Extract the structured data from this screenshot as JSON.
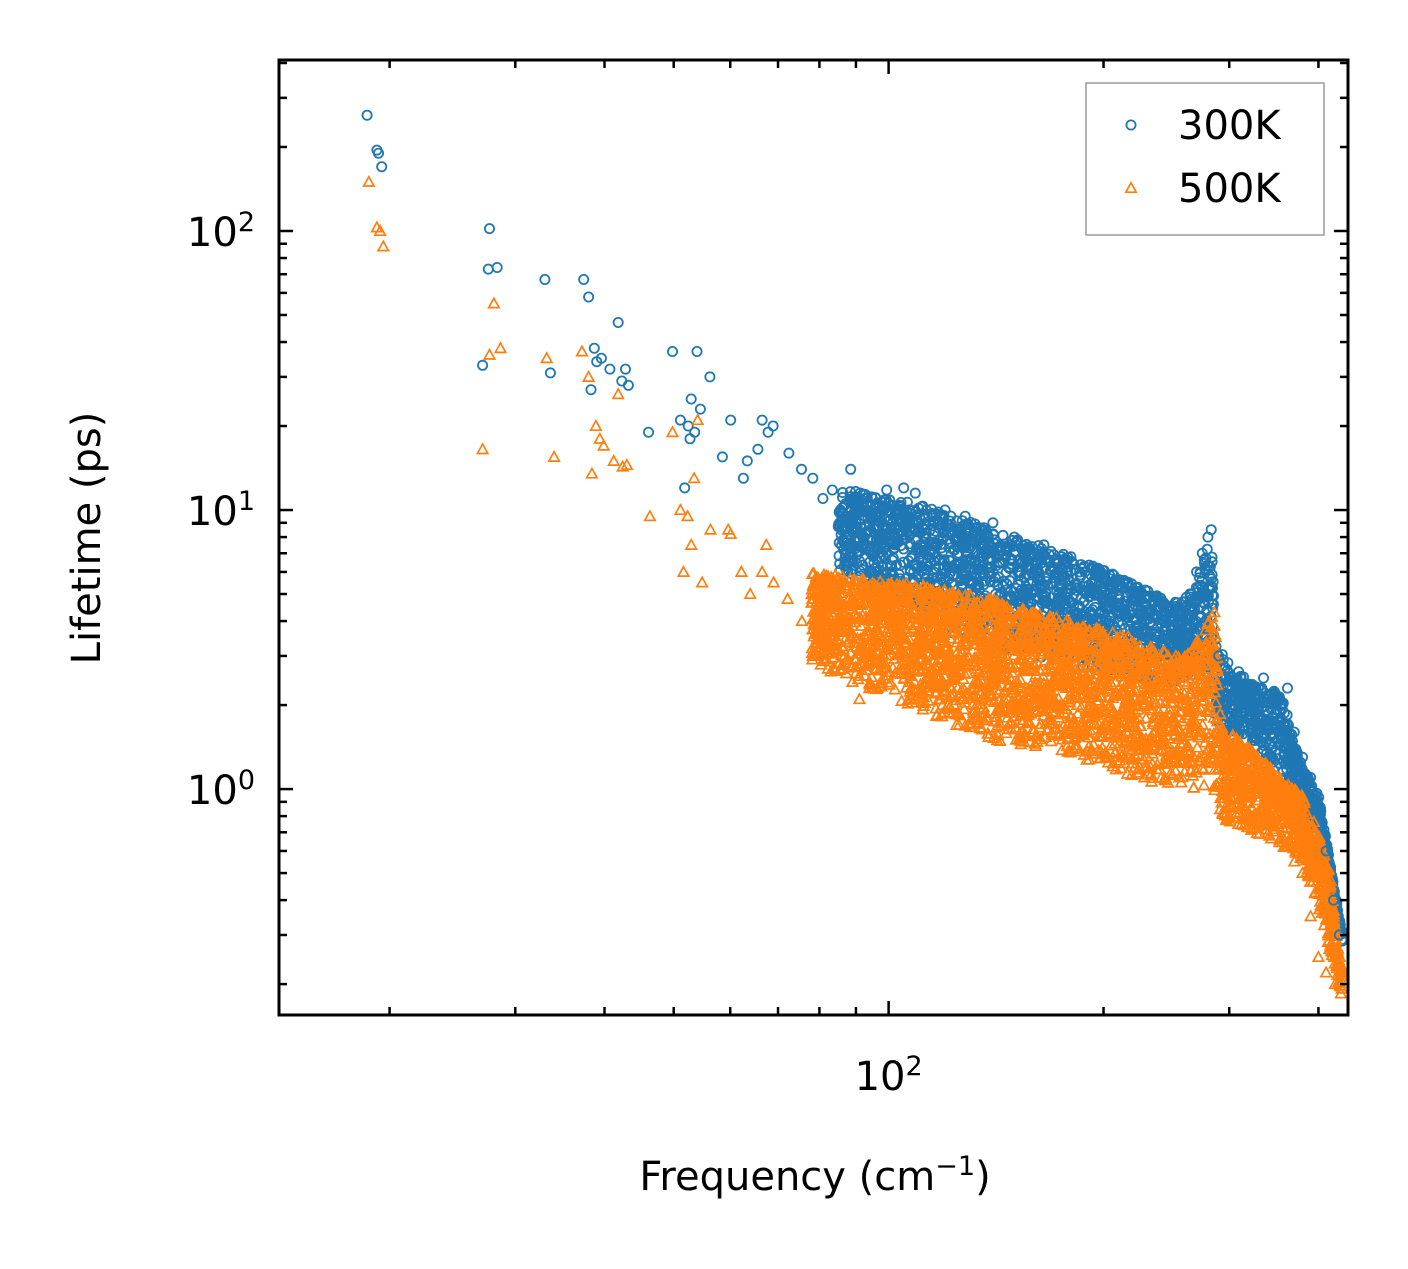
{
  "chart_data": {
    "type": "scatter",
    "xscale": "log",
    "yscale": "log",
    "xlim": [
      14,
      440
    ],
    "ylim": [
      0.155,
      410
    ],
    "xlabel": "Frequency (cm",
    "xlabel_sup": "−1",
    "xlabel_end": ")",
    "ylabel": "Lifetime (ps)",
    "x_ticks": [
      {
        "base": "10",
        "exp": "2",
        "value": 100
      }
    ],
    "y_ticks": [
      {
        "base": "10",
        "exp": "0",
        "value": 1
      },
      {
        "base": "10",
        "exp": "1",
        "value": 10
      },
      {
        "base": "10",
        "exp": "2",
        "value": 100
      }
    ],
    "legend_position": "top-right",
    "series": [
      {
        "name": "300K",
        "color": "#1f77b4",
        "marker": "circle",
        "points": [
          [
            18.6,
            260
          ],
          [
            19.2,
            195
          ],
          [
            19.3,
            190
          ],
          [
            19.5,
            170
          ],
          [
            27,
            33
          ],
          [
            27.6,
            102
          ],
          [
            27.5,
            73
          ],
          [
            28.3,
            74
          ],
          [
            33,
            67
          ],
          [
            33.6,
            31
          ],
          [
            37.4,
            67
          ],
          [
            38,
            58
          ],
          [
            38.3,
            27
          ],
          [
            38.7,
            38
          ],
          [
            39,
            34
          ],
          [
            39.6,
            35
          ],
          [
            40.7,
            32
          ],
          [
            41.8,
            47
          ],
          [
            42.3,
            29
          ],
          [
            42.8,
            32
          ],
          [
            43.2,
            28
          ],
          [
            46.1,
            19
          ],
          [
            49.8,
            37
          ],
          [
            51.1,
            21
          ],
          [
            51.8,
            12
          ],
          [
            52.4,
            20
          ],
          [
            52.7,
            18
          ],
          [
            52.9,
            25
          ],
          [
            53.5,
            19
          ],
          [
            53.9,
            37
          ],
          [
            54.5,
            23
          ],
          [
            56.2,
            30
          ],
          [
            58.5,
            15.5
          ],
          [
            60.1,
            21
          ],
          [
            62.6,
            13
          ],
          [
            63.4,
            15
          ],
          [
            65.6,
            16.5
          ],
          [
            66.5,
            21
          ],
          [
            67.8,
            19
          ],
          [
            68.9,
            20
          ],
          [
            72.5,
            16
          ],
          [
            75.5,
            14
          ],
          [
            78.3,
            13
          ],
          [
            80.9,
            11
          ],
          [
            83.4,
            11.8
          ],
          [
            88.5,
            14
          ],
          [
            90.6,
            10.2
          ],
          [
            99.4,
            11.8
          ],
          [
            105,
            12
          ],
          [
            109,
            11.5
          ],
          [
            113,
            10
          ],
          [
            120,
            10
          ],
          [
            128,
            9.5
          ],
          [
            140,
            9
          ],
          [
            150,
            8
          ],
          [
            165,
            7.5
          ],
          [
            180,
            6.8
          ],
          [
            195,
            6
          ],
          [
            210,
            5.4
          ],
          [
            225,
            5
          ],
          [
            240,
            4.5
          ],
          [
            250,
            4
          ],
          [
            258,
            4.3
          ],
          [
            265,
            5
          ],
          [
            270,
            6
          ],
          [
            275,
            7
          ],
          [
            280,
            8
          ],
          [
            283,
            8.5
          ],
          [
            290,
            3
          ],
          [
            300,
            2.6
          ],
          [
            310,
            2.3
          ],
          [
            320,
            2.2
          ],
          [
            335,
            2.5
          ],
          [
            345,
            2.1
          ],
          [
            355,
            1.5
          ],
          [
            362,
            2.3
          ],
          [
            370,
            1.6
          ],
          [
            380,
            1.3
          ],
          [
            390,
            1.1
          ],
          [
            400,
            0.85
          ],
          [
            410,
            0.6
          ],
          [
            420,
            0.4
          ],
          [
            428,
            0.3
          ]
        ]
      },
      {
        "name": "500K",
        "color": "#ff7f0e",
        "marker": "triangle",
        "points": [
          [
            18.7,
            150
          ],
          [
            19.2,
            103
          ],
          [
            19.4,
            100
          ],
          [
            19.6,
            88
          ],
          [
            27,
            16.5
          ],
          [
            27.6,
            36
          ],
          [
            28,
            55
          ],
          [
            28.6,
            38
          ],
          [
            33.2,
            35
          ],
          [
            34,
            15.5
          ],
          [
            37.2,
            37
          ],
          [
            38,
            30
          ],
          [
            38.4,
            13.5
          ],
          [
            38.9,
            20
          ],
          [
            39.4,
            18
          ],
          [
            39.9,
            17
          ],
          [
            41.2,
            15
          ],
          [
            41.8,
            26
          ],
          [
            42.4,
            14.3
          ],
          [
            43,
            14.5
          ],
          [
            46.3,
            9.5
          ],
          [
            49.8,
            19
          ],
          [
            51.1,
            10
          ],
          [
            51.6,
            6
          ],
          [
            52.3,
            9.5
          ],
          [
            52.9,
            7.5
          ],
          [
            53.4,
            13
          ],
          [
            54,
            21
          ],
          [
            54.8,
            5.5
          ],
          [
            56.3,
            8.5
          ],
          [
            59.6,
            8.5
          ],
          [
            60.1,
            8.2
          ],
          [
            62.2,
            6
          ],
          [
            64,
            5
          ],
          [
            66.5,
            6
          ],
          [
            67.4,
            7.5
          ],
          [
            69,
            5.5
          ],
          [
            72.2,
            4.8
          ],
          [
            75.6,
            4
          ],
          [
            78.3,
            3
          ],
          [
            80.9,
            5
          ],
          [
            83.5,
            4.2
          ],
          [
            88.5,
            3.5
          ],
          [
            91,
            2.1
          ],
          [
            99,
            2.8
          ],
          [
            108,
            2.8
          ],
          [
            115,
            2.6
          ],
          [
            125,
            2.3
          ],
          [
            135,
            2.1
          ],
          [
            150,
            2
          ],
          [
            165,
            1.9
          ],
          [
            180,
            1.8
          ],
          [
            195,
            1.7
          ],
          [
            210,
            1.6
          ],
          [
            225,
            1.5
          ],
          [
            240,
            1.6
          ],
          [
            255,
            1.8
          ],
          [
            265,
            2.2
          ],
          [
            272,
            2.8
          ],
          [
            278,
            3.2
          ],
          [
            283,
            3.8
          ],
          [
            286,
            4.3
          ],
          [
            295,
            1.2
          ],
          [
            310,
            1.1
          ],
          [
            320,
            0.95
          ],
          [
            335,
            1
          ],
          [
            345,
            0.9
          ],
          [
            358,
            0.8
          ],
          [
            370,
            0.55
          ],
          [
            380,
            0.5
          ],
          [
            390,
            0.35
          ],
          [
            400,
            0.25
          ],
          [
            410,
            0.22
          ],
          [
            422,
            0.2
          ],
          [
            430,
            0.185
          ]
        ]
      }
    ]
  }
}
